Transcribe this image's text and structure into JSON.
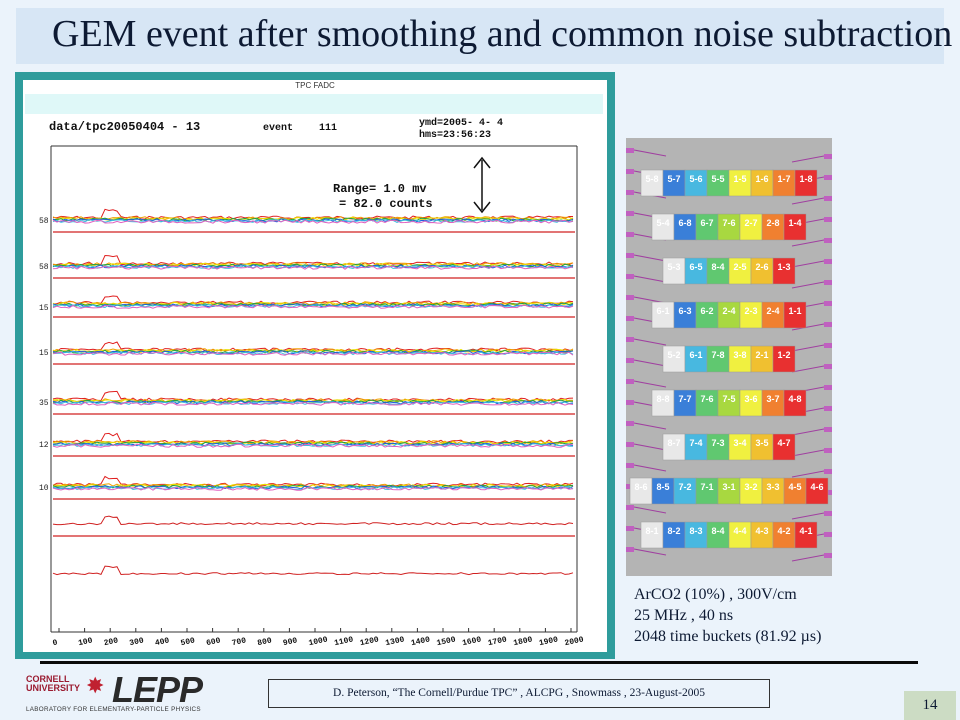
{
  "slide": {
    "title": "GEM event after smoothing and common noise subtraction",
    "page_number": "14"
  },
  "scope": {
    "window_title": "TPC FADC",
    "file_label": "data/tpc20050404 - 13",
    "event_label": "event",
    "event_number": "111",
    "ymd": "ymd=2005-  4-  4",
    "hms": "hms=23:56:23",
    "range_line1": "Range=    1.0  mv",
    "range_line2": "=   82.0  counts",
    "channel_labels": [
      "58",
      "58",
      "15",
      "15",
      "35",
      "12",
      "10"
    ],
    "x_ticks": [
      "0",
      "100",
      "200",
      "300",
      "400",
      "500",
      "600",
      "700",
      "800",
      "900",
      "1000",
      "1100",
      "1200",
      "1300",
      "1400",
      "1500",
      "1600",
      "1700",
      "1800",
      "1900",
      "2000"
    ]
  },
  "pads": {
    "rows": [
      [
        "5-8",
        "5-7",
        "5-6",
        "5-5",
        "1-5",
        "1-6",
        "1-7",
        "1-8"
      ],
      [
        "5-4",
        "6-8",
        "6-7",
        "7-6",
        "2-7",
        "2-8",
        "1-4"
      ],
      [
        "5-3",
        "6-5",
        "8-4",
        "2-5",
        "2-6",
        "1-3"
      ],
      [
        "6-1",
        "6-3",
        "6-2",
        "2-4",
        "2-3",
        "2-4",
        "1-1"
      ],
      [
        "5-2",
        "6-1",
        "7-8",
        "3-8",
        "2-1",
        "1-2"
      ],
      [
        "8-8",
        "7-7",
        "7-6",
        "7-5",
        "3-6",
        "3-7",
        "4-8"
      ],
      [
        "8-7",
        "7-4",
        "7-3",
        "3-4",
        "3-5",
        "4-7"
      ],
      [
        "8-6",
        "8-5",
        "7-2",
        "7-1",
        "3-1",
        "3-2",
        "3-3",
        "4-5",
        "4-6"
      ],
      [
        "8-1",
        "8-2",
        "8-3",
        "8-4",
        "4-4",
        "4-3",
        "4-2",
        "4-1"
      ]
    ]
  },
  "notes": [
    "ArCO2 (10%) , 300V/cm",
    "25 MHz , 40 ns",
    "2048 time buckets  (81.92 µs)"
  ],
  "footer": {
    "citation": "D. Peterson,  “The Cornell/Purdue TPC” ,  ALCPG , Snowmass , 23-August-2005"
  },
  "logo": {
    "university": "CORNELL UNIVERSITY",
    "name": "LEPP",
    "subtitle": "LABORATORY FOR ELEMENTARY-PARTICLE PHYSICS"
  }
}
